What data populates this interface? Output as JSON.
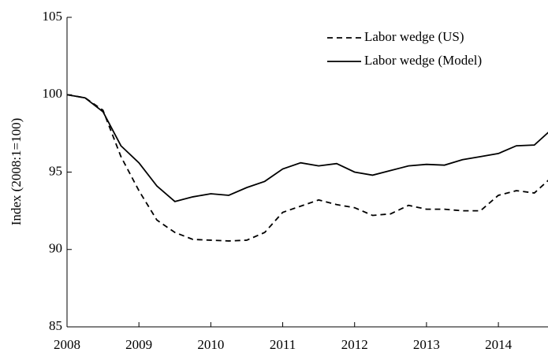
{
  "chart_data": {
    "type": "line",
    "y_label": "Index (2008:1=100)",
    "x": [
      2008,
      2008.25,
      2008.5,
      2008.75,
      2009,
      2009.25,
      2009.5,
      2009.75,
      2010,
      2010.25,
      2010.5,
      2010.75,
      2011,
      2011.25,
      2011.5,
      2011.75,
      2012,
      2012.25,
      2012.5,
      2012.75,
      2013,
      2013.25,
      2013.5,
      2013.75,
      2014,
      2014.25,
      2014.5,
      2014.75
    ],
    "series": [
      {
        "name": "Labor wedge (US)",
        "color": "#000000",
        "style": "dashed",
        "values": [
          100,
          99.8,
          99.0,
          96.0,
          93.8,
          91.9,
          91.1,
          90.65,
          90.6,
          90.55,
          90.6,
          91.1,
          92.4,
          92.8,
          93.2,
          92.9,
          92.7,
          92.2,
          92.3,
          92.85,
          92.6,
          92.6,
          92.5,
          92.5,
          93.5,
          93.8,
          93.65,
          94.7
        ]
      },
      {
        "name": "Labor wedge (Model)",
        "color": "#000000",
        "style": "solid",
        "values": [
          100,
          99.8,
          98.9,
          96.7,
          95.6,
          94.1,
          93.1,
          93.4,
          93.6,
          93.5,
          94.0,
          94.4,
          95.2,
          95.6,
          95.4,
          95.55,
          95.0,
          94.8,
          95.1,
          95.4,
          95.5,
          95.45,
          95.8,
          96.0,
          96.2,
          96.7,
          96.75,
          97.8
        ]
      }
    ],
    "xlim": [
      2008,
      2014.69
    ],
    "xticks": [
      2008,
      2009,
      2010,
      2011,
      2012,
      2013,
      2014
    ],
    "ylim": [
      85,
      105
    ],
    "yticks": [
      85,
      90,
      95,
      100,
      105
    ],
    "grid": false,
    "legend": "top-right"
  }
}
